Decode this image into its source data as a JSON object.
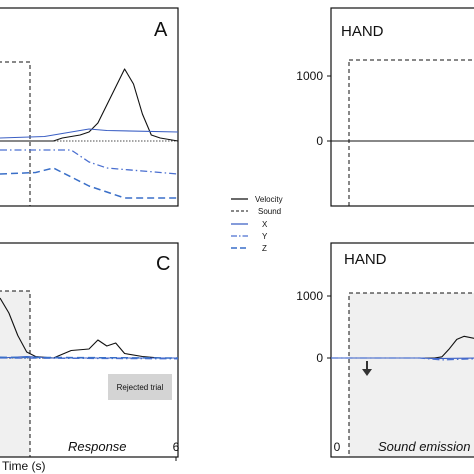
{
  "figure": {
    "legend": [
      {
        "label": "Velocity",
        "color": "#111111",
        "style": "solid"
      },
      {
        "label": "Sound",
        "color": "#111111",
        "style": "dashed"
      },
      {
        "label": "X",
        "color": "#3b5fc4",
        "style": "solid"
      },
      {
        "label": "Y",
        "color": "#3b5fc4",
        "style": "dashdot"
      },
      {
        "label": "Z",
        "color": "#3b5fc4",
        "style": "dashed"
      }
    ],
    "colors": {
      "velocity": "#111111",
      "axis_x": "#3b5fc4",
      "axis_y": "#4a6fd0",
      "axis_z": "#3a6fc8",
      "shade": "#f0f0f0"
    }
  },
  "chart_data": [
    {
      "type": "line",
      "panel": "A",
      "title": "A",
      "series": [
        {
          "name": "Velocity",
          "x": [
            0.0,
            0.05,
            0.1,
            0.15,
            0.2,
            0.25,
            0.3,
            0.35,
            0.4,
            0.45,
            0.5,
            0.55,
            0.6,
            0.65,
            0.7,
            0.75,
            0.8,
            0.85,
            0.9,
            0.95,
            1.0
          ],
          "values": [
            0,
            0,
            0,
            0,
            0,
            0,
            0,
            10,
            15,
            20,
            30,
            60,
            120,
            180,
            240,
            190,
            90,
            20,
            10,
            5,
            0
          ]
        },
        {
          "name": "X",
          "x": [
            0.0,
            0.25,
            0.4,
            0.5,
            0.6,
            1.0
          ],
          "values": [
            10,
            15,
            30,
            40,
            35,
            30
          ]
        },
        {
          "name": "Y",
          "x": [
            0.0,
            0.25,
            0.4,
            0.5,
            0.6,
            0.8,
            1.0
          ],
          "values": [
            -30,
            -30,
            -30,
            -70,
            -90,
            -100,
            -110
          ]
        },
        {
          "name": "Z",
          "x": [
            0.0,
            0.2,
            0.3,
            0.5,
            0.7,
            1.0
          ],
          "values": [
            -110,
            -105,
            -90,
            -150,
            -190,
            -190
          ]
        }
      ]
    },
    {
      "type": "line",
      "panel": "B",
      "title": "HAND",
      "yticks": [
        "1000",
        "0"
      ],
      "series": [
        {
          "name": "Velocity",
          "x": [
            0.0,
            1.0
          ],
          "values": [
            0,
            0
          ]
        }
      ]
    },
    {
      "type": "line",
      "panel": "C",
      "title": "C",
      "xticks": [
        "6"
      ],
      "xlabel": "Time (s)",
      "annotations": [
        "Response",
        "Rejected trial"
      ],
      "series": [
        {
          "name": "Velocity",
          "x": [
            0.0,
            0.05,
            0.1,
            0.15,
            0.2,
            0.25,
            0.3,
            0.4,
            0.5,
            0.55,
            0.6,
            0.65,
            0.7,
            0.8,
            0.9,
            1.0
          ],
          "values": [
            400,
            300,
            150,
            40,
            10,
            5,
            0,
            50,
            60,
            120,
            80,
            100,
            30,
            10,
            0,
            0
          ]
        },
        {
          "name": "X",
          "x": [
            0.0,
            0.15,
            0.3,
            1.0
          ],
          "values": [
            0,
            10,
            0,
            0
          ]
        },
        {
          "name": "Y",
          "x": [
            0.0,
            1.0
          ],
          "values": [
            0,
            -5
          ]
        },
        {
          "name": "Z",
          "x": [
            0.0,
            1.0
          ],
          "values": [
            5,
            0
          ]
        }
      ]
    },
    {
      "type": "line",
      "panel": "D",
      "title": "HAND",
      "yticks": [
        "1000",
        "0"
      ],
      "xticks": [
        "0"
      ],
      "annotations": [
        "Sound emission"
      ],
      "series": [
        {
          "name": "Velocity",
          "x": [
            0.0,
            0.6,
            0.7,
            0.75,
            0.8,
            0.85,
            0.9,
            1.0
          ],
          "values": [
            0,
            0,
            0,
            20,
            150,
            300,
            350,
            300
          ]
        },
        {
          "name": "X",
          "x": [
            0.0,
            0.6,
            0.7,
            1.0
          ],
          "values": [
            0,
            0,
            -10,
            0
          ]
        },
        {
          "name": "Y",
          "x": [
            0.0,
            0.6,
            0.75,
            1.0
          ],
          "values": [
            0,
            0,
            -30,
            -10
          ]
        }
      ]
    }
  ]
}
